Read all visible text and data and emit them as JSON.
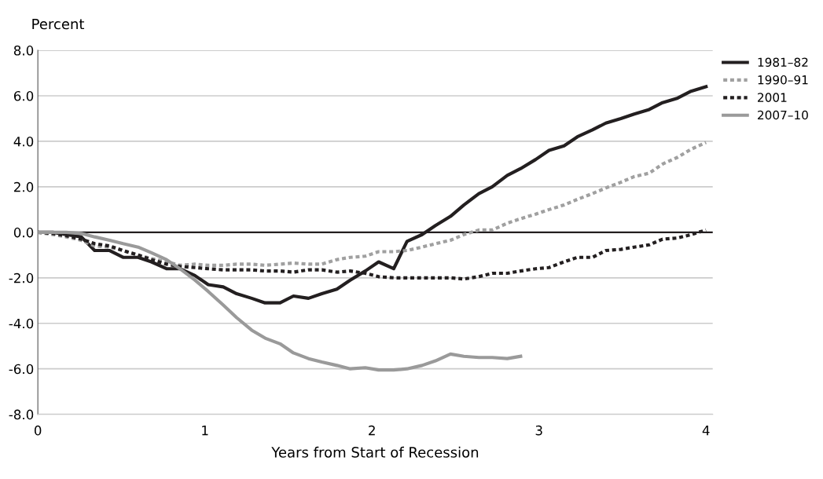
{
  "chart_data": {
    "type": "line",
    "ylabel": "Percent",
    "xlabel": "Years from Start of Recession",
    "x": [
      0,
      0.09,
      0.17,
      0.26,
      0.34,
      0.43,
      0.51,
      0.6,
      0.68,
      0.77,
      0.85,
      0.94,
      1.02,
      1.11,
      1.19,
      1.28,
      1.36,
      1.45,
      1.53,
      1.62,
      1.7,
      1.79,
      1.87,
      1.96,
      2.04,
      2.13,
      2.21,
      2.3,
      2.38,
      2.47,
      2.55,
      2.64,
      2.72,
      2.81,
      2.89,
      2.98,
      3.06,
      3.15,
      3.23,
      3.32,
      3.4,
      3.49,
      3.57,
      3.66,
      3.74,
      3.83,
      3.91,
      4
    ],
    "series": [
      {
        "name": "1981–82",
        "color": "#231f20",
        "line_style": "solid",
        "values": [
          0,
          0,
          -0.1,
          -0.2,
          -0.8,
          -0.8,
          -1.1,
          -1.1,
          -1.3,
          -1.6,
          -1.6,
          -1.9,
          -2.3,
          -2.4,
          -2.7,
          -2.9,
          -3.1,
          -3.1,
          -2.8,
          -2.9,
          -2.7,
          -2.5,
          -2.1,
          -1.7,
          -1.3,
          -1.6,
          -0.4,
          -0.1,
          0.3,
          0.7,
          1.2,
          1.7,
          2.0,
          2.5,
          2.8,
          3.2,
          3.6,
          3.8,
          4.2,
          4.5,
          4.8,
          5.0,
          5.2,
          5.4,
          5.7,
          5.9,
          6.2,
          6.4
        ]
      },
      {
        "name": "1990–91",
        "color": "#a0a0a0",
        "line_style": "dotted",
        "values": [
          0,
          -0.1,
          -0.2,
          -0.35,
          -0.6,
          -0.65,
          -0.8,
          -1.0,
          -1.15,
          -1.3,
          -1.45,
          -1.4,
          -1.45,
          -1.45,
          -1.4,
          -1.4,
          -1.45,
          -1.4,
          -1.35,
          -1.4,
          -1.4,
          -1.2,
          -1.1,
          -1.05,
          -0.85,
          -0.85,
          -0.8,
          -0.65,
          -0.5,
          -0.35,
          -0.1,
          0.1,
          0.1,
          0.4,
          0.6,
          0.8,
          1.0,
          1.2,
          1.45,
          1.7,
          1.95,
          2.2,
          2.45,
          2.6,
          3.0,
          3.3,
          3.65,
          3.95
        ]
      },
      {
        "name": "2001",
        "color": "#231f20",
        "line_style": "dotted",
        "values": [
          0,
          -0.05,
          -0.15,
          -0.3,
          -0.5,
          -0.6,
          -0.8,
          -1.0,
          -1.2,
          -1.4,
          -1.5,
          -1.55,
          -1.6,
          -1.65,
          -1.65,
          -1.65,
          -1.7,
          -1.7,
          -1.75,
          -1.65,
          -1.65,
          -1.75,
          -1.7,
          -1.8,
          -1.95,
          -2.0,
          -2.0,
          -2.0,
          -2.0,
          -2.0,
          -2.05,
          -1.95,
          -1.8,
          -1.8,
          -1.7,
          -1.6,
          -1.55,
          -1.3,
          -1.1,
          -1.1,
          -0.8,
          -0.75,
          -0.65,
          -0.55,
          -0.3,
          -0.25,
          -0.1,
          0.1
        ]
      },
      {
        "name": "2007–10",
        "color": "#9a9a9a",
        "line_style": "solid",
        "values": [
          0,
          0,
          0,
          -0.05,
          -0.2,
          -0.35,
          -0.5,
          -0.65,
          -0.9,
          -1.2,
          -1.6,
          -2.1,
          -2.6,
          -3.2,
          -3.75,
          -4.3,
          -4.65,
          -4.9,
          -5.3,
          -5.55,
          -5.7,
          -5.85,
          -6.0,
          -5.95,
          -6.05,
          -6.05,
          -6.0,
          -5.85,
          -5.65,
          -5.35,
          -5.45,
          -5.5,
          -5.5,
          -5.55,
          -5.45,
          null,
          null,
          null,
          null,
          null,
          null,
          null,
          null,
          null,
          null,
          null,
          null,
          null
        ]
      }
    ],
    "xlim": [
      0,
      4.04
    ],
    "xticks": [
      0,
      1,
      2,
      3,
      4
    ],
    "ylim": [
      -8,
      8
    ],
    "yticks": [
      {
        "value": -8,
        "label": "-8.0"
      },
      {
        "value": -6,
        "label": "-6.0"
      },
      {
        "value": -4,
        "label": "-4.0"
      },
      {
        "value": -2,
        "label": "-2.0"
      },
      {
        "value": 0,
        "label": "0.0"
      },
      {
        "value": 2,
        "label": "2.0"
      },
      {
        "value": 4,
        "label": "4.0"
      },
      {
        "value": 6,
        "label": "6.0"
      },
      {
        "value": 8,
        "label": "8.0"
      }
    ],
    "ref_lines": [
      {
        "axis": "y",
        "value": 0,
        "label": null,
        "color": "#231f20"
      }
    ],
    "grid": "y",
    "legend": "top right",
    "marker": "none"
  }
}
